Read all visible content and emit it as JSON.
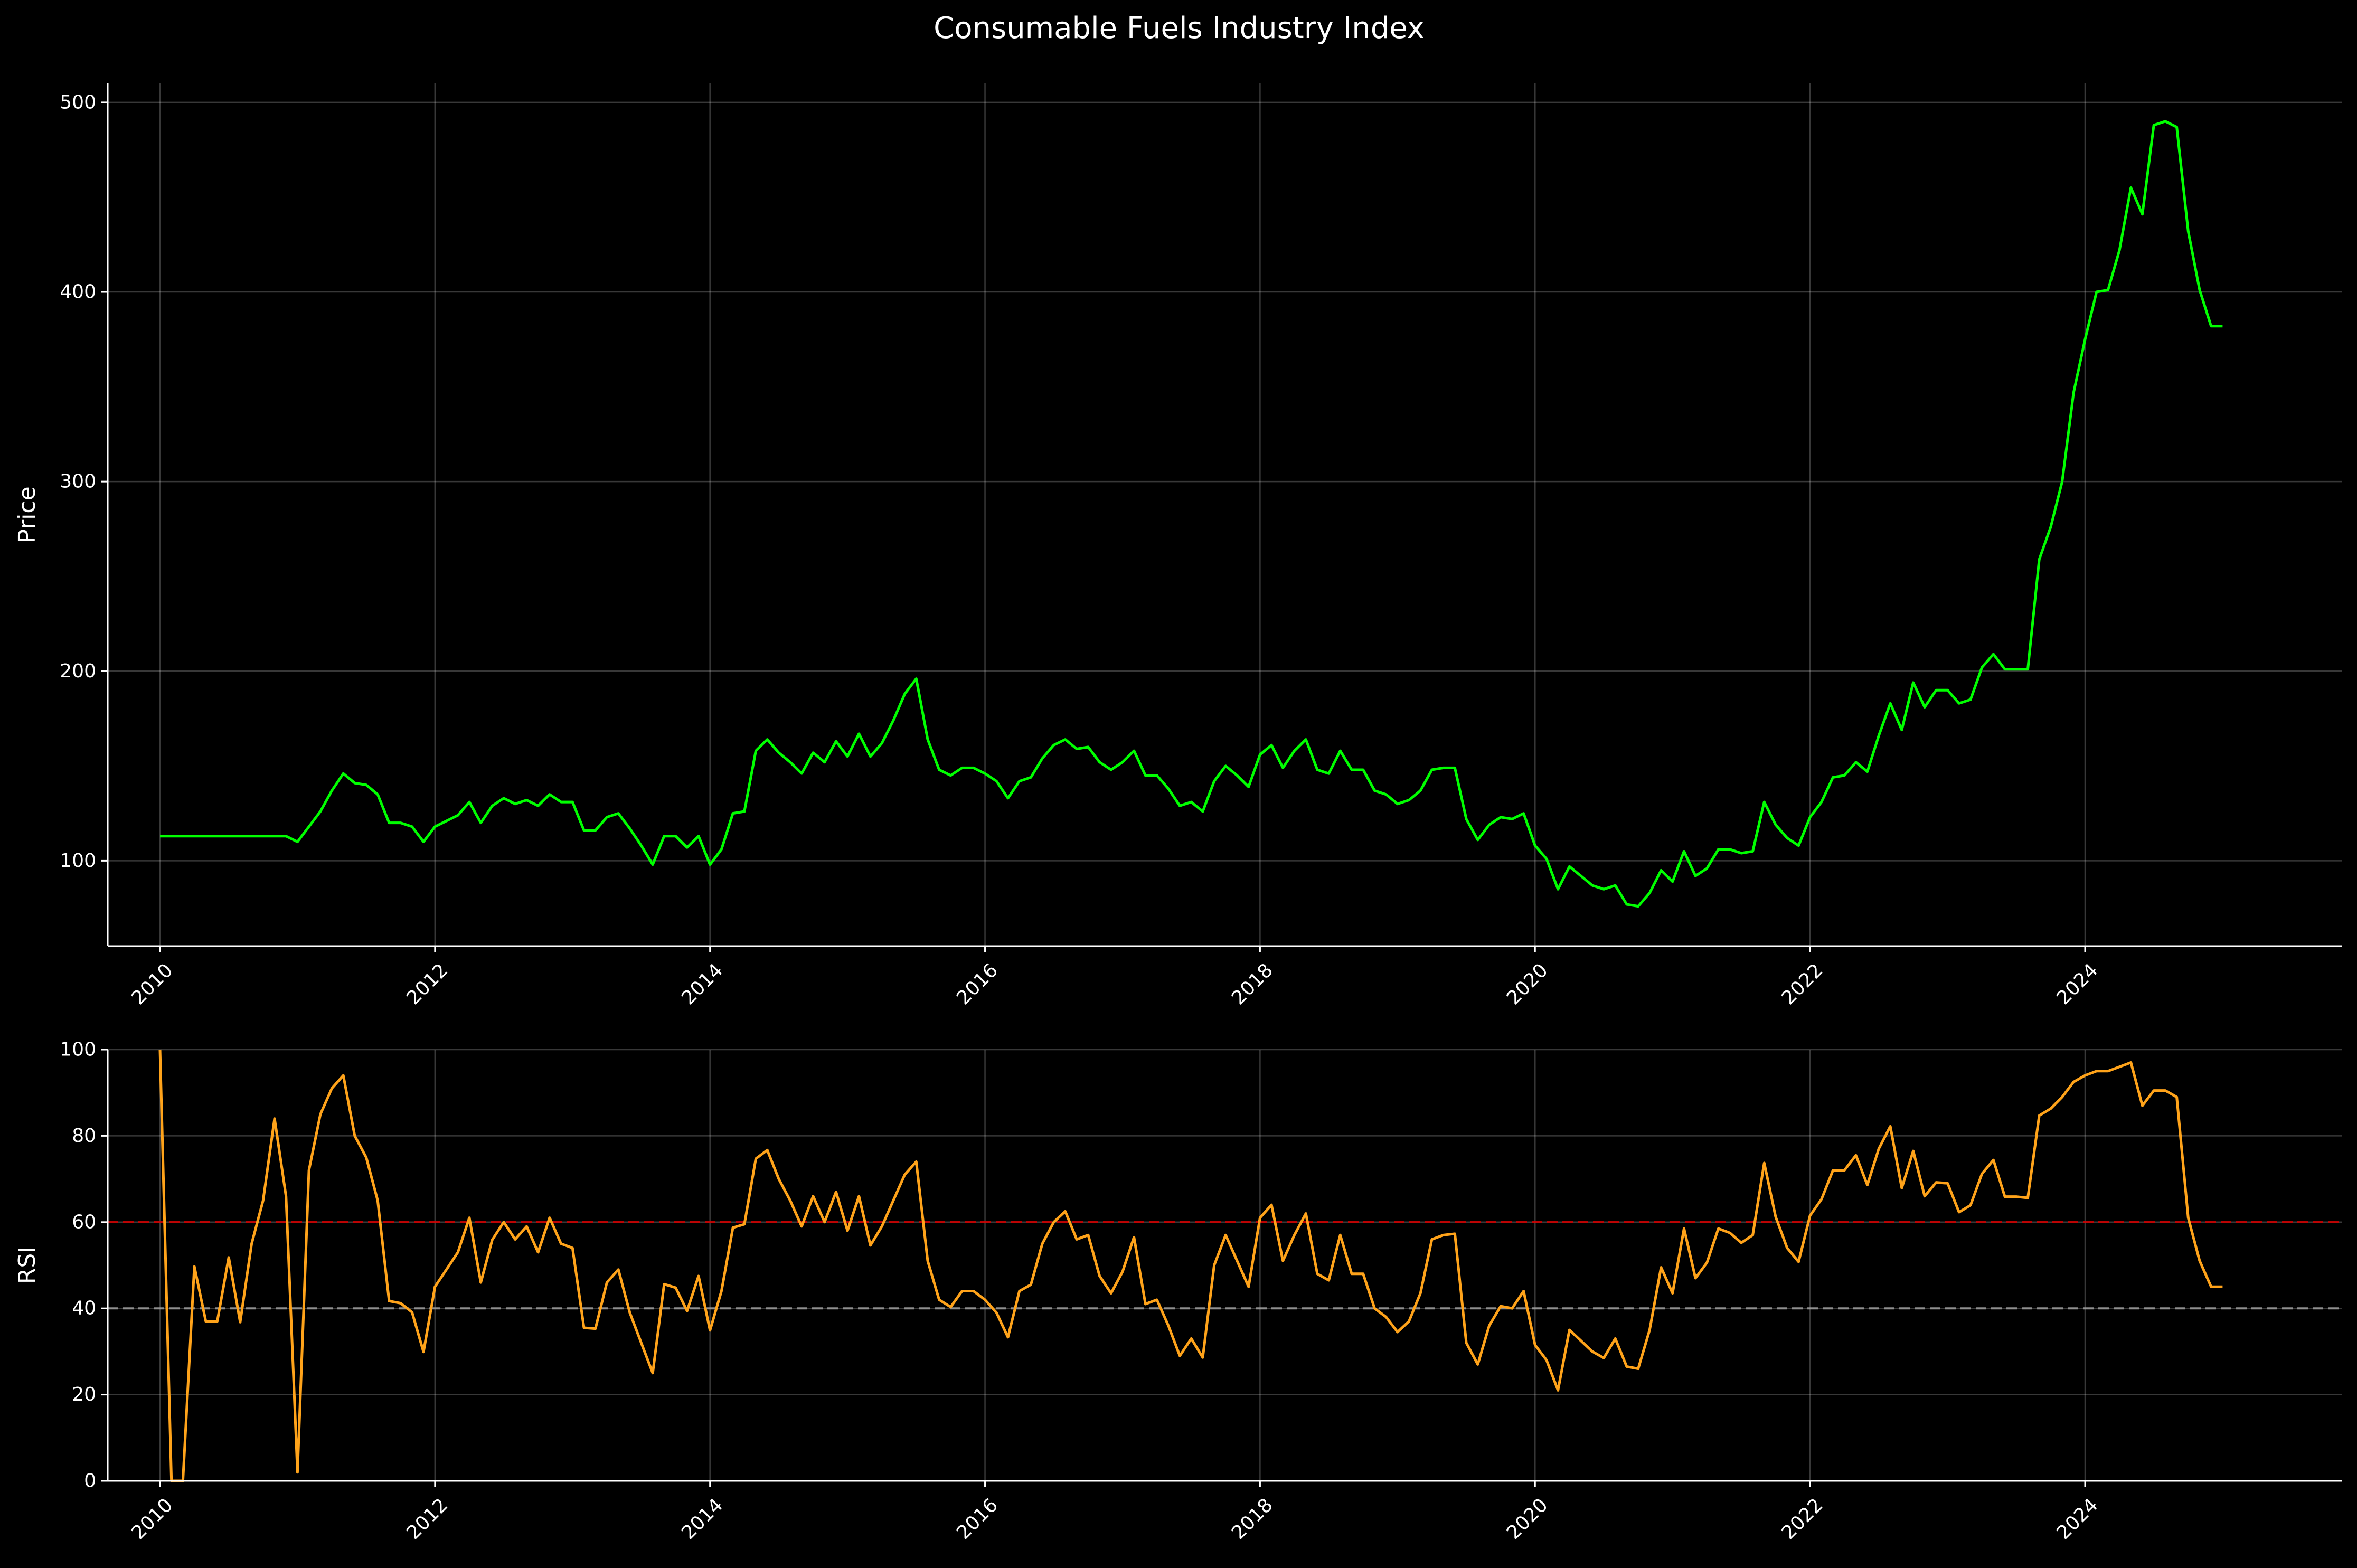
{
  "chart_data": [
    {
      "type": "line",
      "title": "Consumable Fuels Industry Index",
      "ylabel": "Price",
      "xlabel": "",
      "x_start": "2010-01",
      "x_step": "1 month",
      "xlim": [
        2009.62,
        2025.87
      ],
      "ylim": [
        55,
        510
      ],
      "yticks": [
        100,
        200,
        300,
        400,
        500
      ],
      "xticks": [
        2010,
        2012,
        2014,
        2016,
        2018,
        2020,
        2022,
        2024
      ],
      "grid": true,
      "series": [
        {
          "color": "#00ff00",
          "values": [
            113,
            113,
            113,
            113,
            113,
            113,
            113,
            113,
            113,
            113,
            113,
            113,
            110,
            118,
            126,
            137,
            146,
            141,
            140,
            135,
            120,
            120,
            118,
            110,
            118,
            121,
            124,
            131,
            120,
            129,
            133,
            130,
            132,
            129,
            135,
            131,
            131,
            116,
            116,
            123,
            125,
            117,
            108,
            98,
            113,
            113,
            107,
            113,
            98,
            106,
            125,
            126,
            158,
            164,
            157,
            152,
            146,
            157,
            152,
            163,
            155,
            167,
            155,
            162,
            174,
            188,
            196,
            164,
            148,
            145,
            149,
            149,
            146,
            142,
            133,
            142,
            144,
            154,
            161,
            164,
            159,
            160,
            152,
            148,
            152,
            158,
            145,
            145,
            138,
            129,
            131,
            126,
            142,
            150,
            145,
            139,
            156,
            161,
            149,
            158,
            164,
            148,
            146,
            158,
            148,
            148,
            137,
            135,
            130,
            132,
            137,
            148,
            149,
            149,
            122,
            111,
            119,
            123,
            122,
            125,
            108,
            101,
            85,
            97,
            92,
            87,
            85,
            87,
            77,
            76,
            83,
            95,
            89,
            105,
            92,
            96,
            106,
            106,
            104,
            105,
            131,
            119,
            112,
            108,
            123,
            131,
            144,
            145,
            152,
            147,
            166,
            183,
            169,
            194,
            181,
            190,
            190,
            183,
            185,
            202,
            209,
            201,
            201,
            201,
            259,
            276,
            300,
            347,
            375,
            400,
            401,
            422,
            455,
            441,
            488,
            490,
            487,
            432,
            401,
            382,
            382
          ]
        }
      ]
    },
    {
      "type": "line",
      "title": "",
      "ylabel": "RSI",
      "xlabel": "",
      "x_start": "2010-01",
      "x_step": "1 month",
      "xlim": [
        2009.62,
        2025.87
      ],
      "ylim": [
        0,
        100
      ],
      "yticks": [
        0,
        20,
        40,
        60,
        80,
        100
      ],
      "xticks": [
        2010,
        2012,
        2014,
        2016,
        2018,
        2020,
        2022,
        2024
      ],
      "grid": true,
      "reference_lines": [
        {
          "y": 60,
          "color": "#cc0000",
          "style": "dashed"
        },
        {
          "y": 40,
          "color": "#9a9a9a",
          "style": "dashed"
        }
      ],
      "series": [
        {
          "color": "#ffa31a",
          "values": [
            100,
            0,
            0,
            49.7,
            37,
            37,
            51.8,
            36.8,
            55,
            65,
            84,
            66,
            2,
            72,
            85,
            91,
            94,
            80,
            75,
            65,
            41.7,
            41.2,
            39.1,
            29.9,
            45,
            49,
            53,
            61,
            46,
            55.9,
            60,
            56,
            59,
            53,
            61,
            55,
            54,
            35.5,
            35.3,
            46,
            49,
            39,
            32,
            25,
            45.6,
            44.8,
            39.4,
            47.5,
            34.9,
            44,
            58.7,
            59.5,
            74.7,
            76.7,
            70,
            65,
            59,
            66,
            60,
            67,
            58,
            66,
            54.6,
            59,
            65,
            71,
            74,
            51,
            42,
            40.3,
            44,
            44,
            42,
            39,
            33.3,
            44,
            45.5,
            55,
            60,
            62.5,
            56,
            57,
            47.5,
            43.5,
            48.5,
            56.5,
            41,
            42,
            36,
            29,
            33,
            28.6,
            50,
            57,
            51,
            45,
            61,
            64,
            51,
            57,
            62,
            48,
            46.5,
            57,
            48,
            48,
            40,
            38,
            34.5,
            37,
            43.5,
            56,
            57,
            57.3,
            32,
            27,
            36,
            40.5,
            40,
            44,
            31.5,
            28,
            21,
            35,
            32.5,
            30,
            28.5,
            33,
            26.5,
            26,
            35,
            49.5,
            43.5,
            58.5,
            47,
            50.6,
            58.5,
            57.5,
            55.2,
            57,
            73.7,
            61.2,
            54,
            50.8,
            61.5,
            65.3,
            72,
            72,
            75.5,
            68.6,
            77,
            82.2,
            67.9,
            76.5,
            66,
            69.2,
            69,
            62.3,
            63.9,
            71.2,
            74.4,
            65.9,
            65.9,
            65.6,
            84.7,
            86.3,
            89,
            92.5,
            94,
            95,
            95,
            96,
            97,
            87,
            90.5,
            90.5,
            89,
            61,
            51,
            45,
            45
          ]
        }
      ]
    }
  ]
}
